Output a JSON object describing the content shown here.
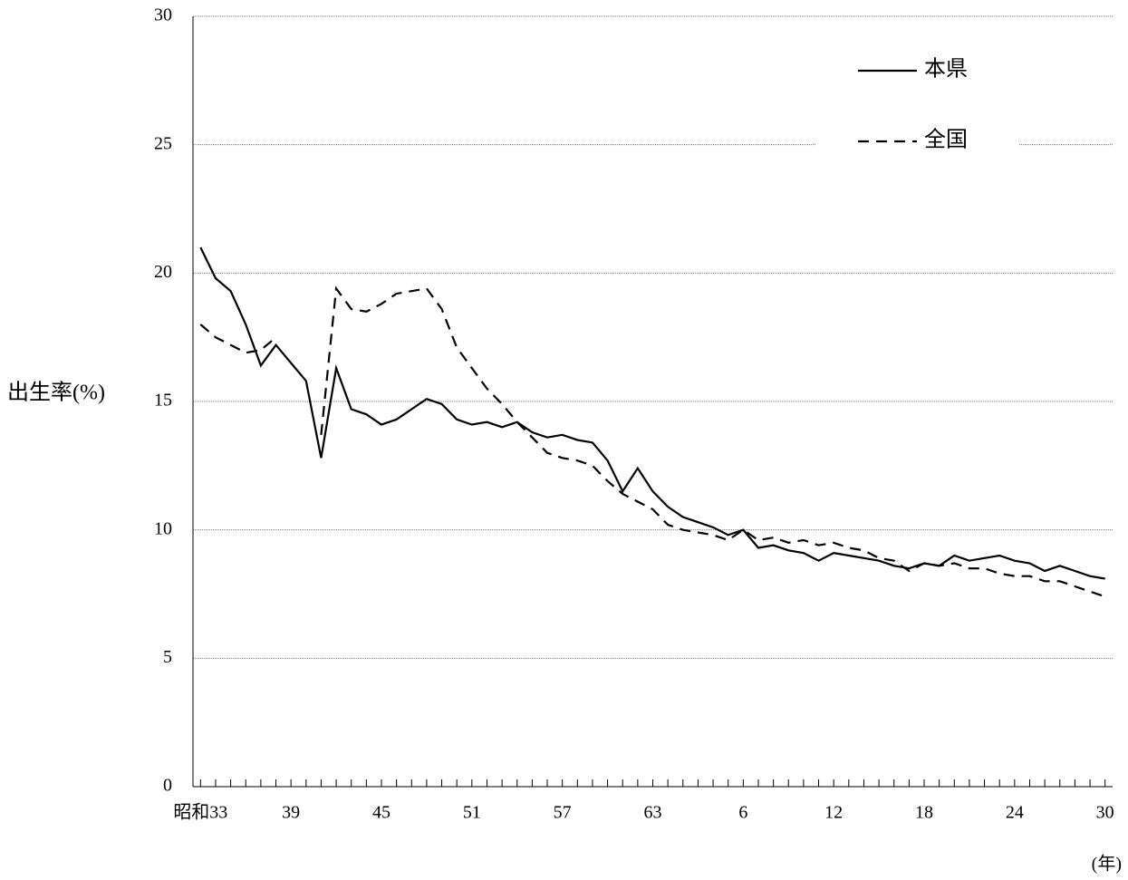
{
  "chart_data": {
    "type": "line",
    "y_label": "出生率(%)",
    "x_label": "(年)",
    "categories": [
      "昭和33",
      null,
      null,
      null,
      null,
      null,
      "39",
      null,
      null,
      null,
      null,
      null,
      "45",
      null,
      null,
      null,
      null,
      null,
      "51",
      null,
      null,
      null,
      null,
      null,
      "57",
      null,
      null,
      null,
      null,
      null,
      "63",
      null,
      null,
      null,
      null,
      null,
      "6",
      null,
      null,
      null,
      null,
      null,
      "12",
      null,
      null,
      null,
      null,
      null,
      "18",
      null,
      null,
      null,
      null,
      null,
      "24",
      null,
      null,
      null,
      null,
      null,
      "30"
    ],
    "series": [
      {
        "name": "本県",
        "color": "#000000",
        "line_style": "solid",
        "values": [
          21.0,
          19.8,
          19.3,
          18.0,
          16.4,
          17.2,
          16.5,
          15.8,
          12.8,
          16.3,
          14.7,
          14.5,
          14.1,
          14.3,
          14.7,
          15.1,
          14.9,
          14.3,
          14.1,
          14.2,
          14.0,
          14.2,
          13.8,
          13.6,
          13.7,
          13.5,
          13.4,
          12.7,
          11.5,
          12.4,
          11.5,
          10.9,
          10.5,
          10.3,
          10.1,
          9.8,
          10.0,
          9.3,
          9.4,
          9.2,
          9.1,
          8.8,
          9.1,
          9.0,
          8.9,
          8.8,
          8.6,
          8.5,
          8.7,
          8.6,
          9.0,
          8.8,
          8.9,
          9.0,
          8.8,
          8.7,
          8.4,
          8.6,
          8.4,
          8.2,
          8.1
        ]
      },
      {
        "name": "全国",
        "color": "#000000",
        "line_style": "dashed",
        "values": [
          18.0,
          17.5,
          17.2,
          16.9,
          17.0,
          17.5,
          null,
          null,
          13.7,
          19.4,
          18.6,
          18.5,
          18.8,
          19.2,
          19.3,
          19.4,
          18.6,
          17.1,
          16.3,
          15.5,
          14.9,
          14.2,
          13.6,
          13.0,
          12.8,
          12.7,
          12.5,
          11.9,
          11.4,
          11.1,
          10.8,
          10.2,
          10.0,
          9.9,
          9.8,
          9.6,
          10.0,
          9.6,
          9.7,
          9.5,
          9.6,
          9.4,
          9.5,
          9.3,
          9.2,
          8.9,
          8.8,
          8.4,
          8.7,
          8.6,
          8.7,
          8.5,
          8.5,
          8.3,
          8.2,
          8.2,
          8.0,
          8.0,
          7.8,
          7.6,
          7.4
        ]
      }
    ],
    "ylim": [
      0,
      30
    ],
    "yticks": [
      0,
      5,
      10,
      15,
      20,
      25,
      30
    ],
    "grid": true,
    "legend": "upper right"
  }
}
